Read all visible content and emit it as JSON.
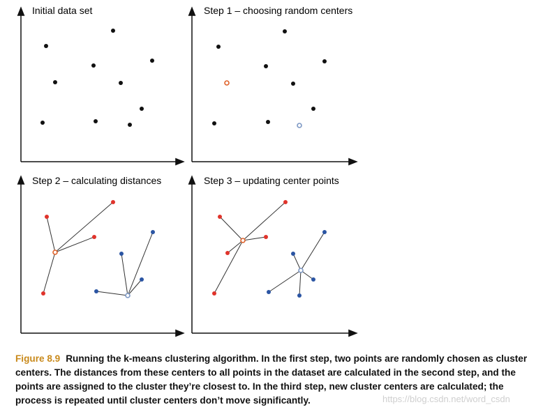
{
  "panels": [
    {
      "title": "Initial data set"
    },
    {
      "title": "Step 1 – choosing random centers"
    },
    {
      "title": "Step 2 – calculating distances"
    },
    {
      "title": "Step 3 – updating center points"
    }
  ],
  "caption": {
    "label": "Figure 8.9",
    "text": "Running the k-means clustering algorithm. In the first step, two points are randomly chosen as cluster centers. The distances from these centers to all points in the dataset are calculated in the second step, and the points are assigned to the cluster they’re closest to. In the third step, new cluster centers are calculated; the process is repeated until cluster centers don’t move significantly."
  },
  "watermark": "https://blog.csdn.net/word_csdn",
  "colors": {
    "point": "#111111",
    "cluster_red": "#e0332b",
    "cluster_blue": "#2b55a3",
    "center_red": "#e0632b",
    "center_blue": "#7d98c4",
    "line": "#333333",
    "label_accent": "#c98a1c"
  }
}
